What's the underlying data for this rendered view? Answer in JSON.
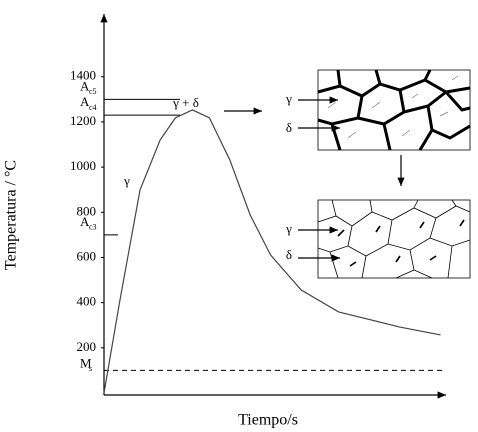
{
  "chart_data": {
    "type": "line",
    "ylabel": "Temperatura / °C",
    "xlabel": "Tiempo/s",
    "ylim": [
      0,
      1700
    ],
    "yticks": [
      200,
      400,
      600,
      800,
      1000,
      1200,
      1400
    ],
    "xlim": [
      0,
      100
    ],
    "x": [
      0,
      4.7,
      10.6,
      16.5,
      21,
      26,
      31,
      37,
      43,
      49,
      58,
      69,
      87,
      99
    ],
    "values": [
      0,
      412,
      899,
      1120,
      1218,
      1253,
      1218,
      1032,
      788,
      611,
      456,
      359,
      292,
      257
    ],
    "color": "#444444",
    "reference_lines": [
      {
        "name": "A",
        "subscript": "c5",
        "value": 1300
      },
      {
        "name": "A",
        "subscript": "c4",
        "value": 1230
      },
      {
        "name": "A",
        "subscript": "c3",
        "value": 700
      },
      {
        "name": "M",
        "subscript": "s",
        "value": 100
      }
    ],
    "annotations": {
      "phase_top": "γ + δ",
      "phase_mid": "γ",
      "micro_top": [
        "γ",
        "δ"
      ],
      "micro_bottom": [
        "γ",
        "δ"
      ]
    }
  }
}
